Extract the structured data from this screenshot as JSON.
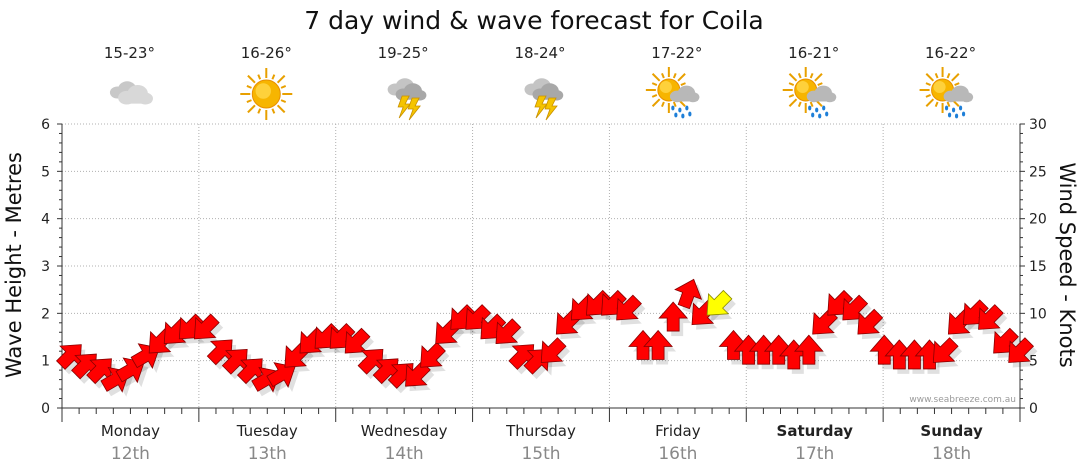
{
  "title": "7 day wind & wave forecast for Coila",
  "watermark": "www.seabreeze.com.au",
  "chart_data": {
    "type": "line",
    "left_axis": {
      "label": "Wave Height - Metres",
      "range": [
        0,
        6
      ],
      "ticks": [
        "0",
        "1",
        "2",
        "3",
        "4",
        "5",
        "6"
      ]
    },
    "right_axis": {
      "label": "Wind Speed - Knots",
      "range": [
        0,
        30
      ],
      "ticks": [
        "0",
        "5",
        "10",
        "15",
        "20",
        "25",
        "30"
      ]
    },
    "days": [
      {
        "day": "Monday",
        "date": "12th",
        "temp": "15-23°",
        "icon": "cloudy-icon",
        "bold": false
      },
      {
        "day": "Tuesday",
        "date": "13th",
        "temp": "16-26°",
        "icon": "sunny-icon",
        "bold": false
      },
      {
        "day": "Wednesday",
        "date": "14th",
        "temp": "19-25°",
        "icon": "thunderstorm-icon",
        "bold": false
      },
      {
        "day": "Thursday",
        "date": "15th",
        "temp": "18-24°",
        "icon": "thunderstorm-icon",
        "bold": false
      },
      {
        "day": "Friday",
        "date": "16th",
        "temp": "17-22°",
        "icon": "sun-rain-icon",
        "bold": false
      },
      {
        "day": "Saturday",
        "date": "17th",
        "temp": "16-21°",
        "icon": "sun-rain-icon",
        "bold": true
      },
      {
        "day": "Sunday",
        "date": "18th",
        "temp": "16-22°",
        "icon": "sun-rain-icon",
        "bold": true
      }
    ],
    "wind_series": {
      "name": "Wind Speed",
      "unit": "knots",
      "hours_per_step": 3,
      "values": [
        5.5,
        4.5,
        4,
        3,
        4,
        5.5,
        7,
        8,
        8.5,
        8.5,
        6,
        5,
        4,
        3,
        3.5,
        5.5,
        7,
        7.5,
        7.5,
        7,
        5,
        4,
        3.5,
        3.5,
        5.5,
        8,
        9.5,
        9.5,
        8.5,
        8,
        5.5,
        5,
        6,
        9,
        10.5,
        11,
        11,
        10.5,
        6.5,
        6.5,
        9.5,
        12,
        10,
        11,
        6.5,
        6,
        6,
        6,
        5.5,
        6,
        9,
        11,
        10.5,
        9,
        6,
        5.5,
        5.5,
        5.5,
        6,
        9,
        10,
        9.5,
        7,
        6
      ],
      "directions_deg": [
        45,
        45,
        45,
        60,
        60,
        60,
        225,
        225,
        225,
        225,
        45,
        45,
        45,
        60,
        60,
        225,
        225,
        225,
        225,
        225,
        45,
        45,
        45,
        225,
        225,
        225,
        225,
        225,
        225,
        225,
        45,
        45,
        225,
        225,
        225,
        225,
        225,
        225,
        0,
        0,
        0,
        20,
        225,
        225,
        0,
        0,
        0,
        0,
        0,
        0,
        225,
        225,
        225,
        225,
        0,
        0,
        0,
        0,
        225,
        225,
        225,
        225,
        225,
        225
      ],
      "highlight": {
        "index": 43,
        "color": "#FFFF00",
        "label": ""
      }
    },
    "colors": {
      "wind_arrow": "#FF0000",
      "arrow_outline": "#880000",
      "grid": "#aaaaaa"
    }
  }
}
